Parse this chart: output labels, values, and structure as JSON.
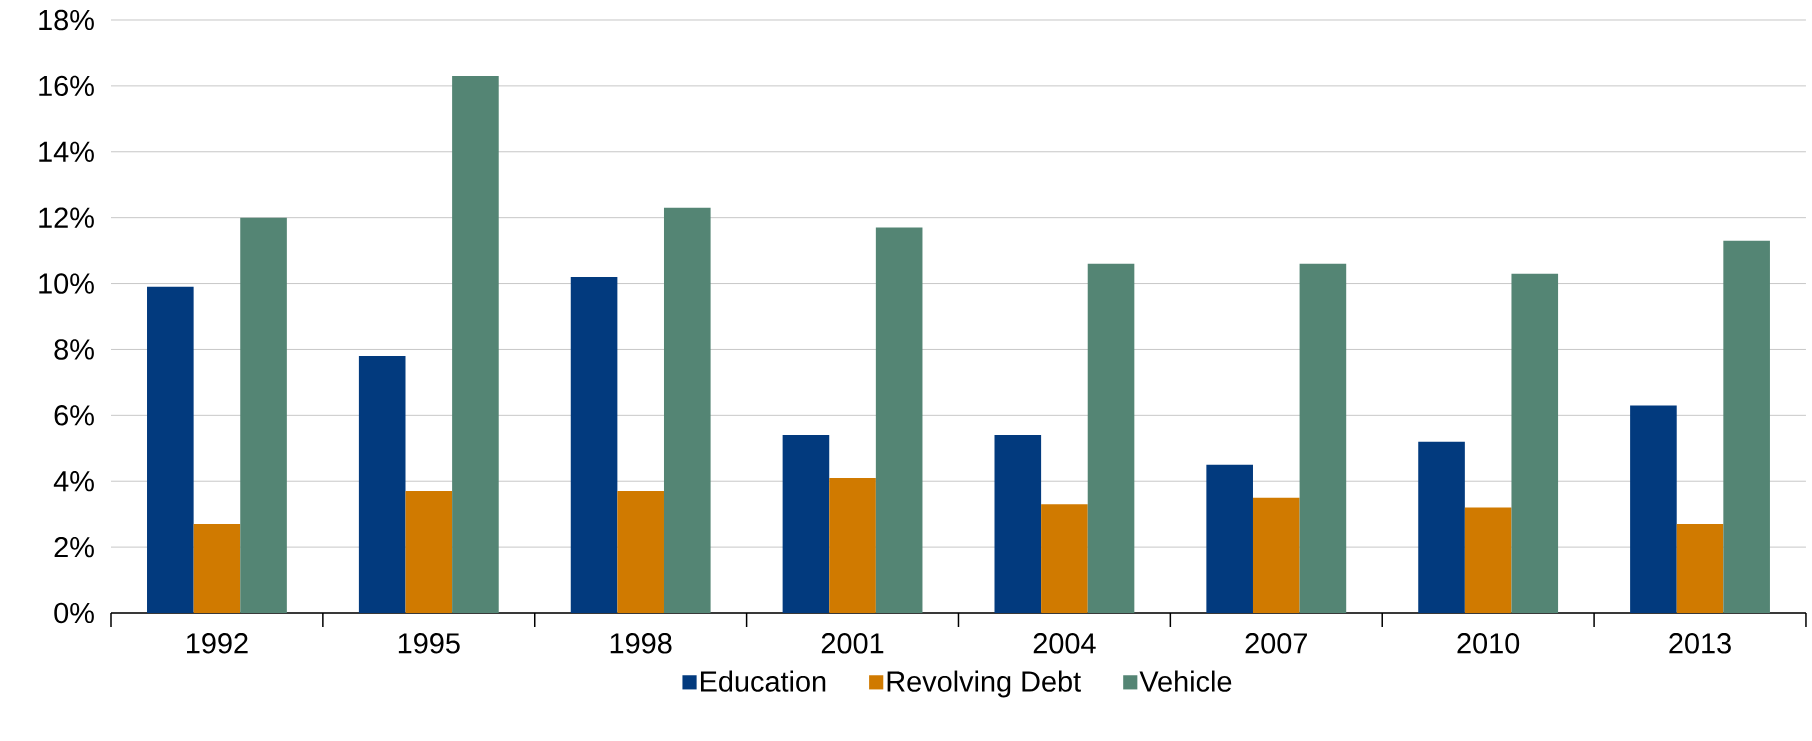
{
  "chart_data": {
    "type": "bar",
    "categories": [
      "1992",
      "1995",
      "1998",
      "2001",
      "2004",
      "2007",
      "2010",
      "2013"
    ],
    "series": [
      {
        "name": "Education",
        "color": "#023a7e",
        "values": [
          9.9,
          7.8,
          10.2,
          5.4,
          5.4,
          4.5,
          5.2,
          6.3
        ]
      },
      {
        "name": "Revolving Debt",
        "color": "#d07a00",
        "values": [
          2.7,
          3.7,
          3.7,
          4.1,
          3.3,
          3.5,
          3.2,
          2.7
        ]
      },
      {
        "name": "Vehicle",
        "color": "#548574",
        "values": [
          12.0,
          16.3,
          12.3,
          11.7,
          10.6,
          10.6,
          10.3,
          11.3
        ]
      }
    ],
    "ylim": [
      0,
      18
    ],
    "yticks": [
      {
        "value": 0,
        "label": "0%"
      },
      {
        "value": 2,
        "label": "2%"
      },
      {
        "value": 4,
        "label": "4%"
      },
      {
        "value": 6,
        "label": "6%"
      },
      {
        "value": 8,
        "label": "8%"
      },
      {
        "value": 10,
        "label": "10%"
      },
      {
        "value": 12,
        "label": "12%"
      },
      {
        "value": 14,
        "label": "14%"
      },
      {
        "value": 16,
        "label": "16%"
      },
      {
        "value": 18,
        "label": "18%"
      }
    ],
    "grid": "y",
    "legend": "bottom"
  }
}
